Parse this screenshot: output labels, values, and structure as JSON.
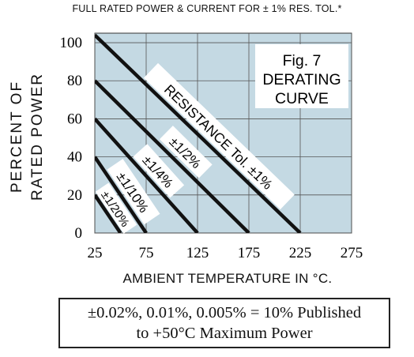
{
  "header": "FULL RATED POWER & CURRENT  FOR ± 1% RES. TOL.*",
  "ylabel": [
    "PERCENT OF",
    "RATED POWER"
  ],
  "xlabel": "AMBIENT TEMPERATURE IN °C.",
  "note": {
    "line1": "±0.02%, 0.01%, 0.005% = 10% Published",
    "line2": "to +50°C Maximum Power"
  },
  "colors": {
    "plot_bg": "#c4d9e3",
    "line": "#111111",
    "box": "#ffffff"
  },
  "chart_data": {
    "type": "line",
    "title": "Fig. 7 DERATING CURVE",
    "fig_box": [
      "Fig. 7",
      "DERATING",
      "CURVE"
    ],
    "xlabel": "AMBIENT TEMPERATURE IN °C.",
    "ylabel": "PERCENT OF RATED POWER",
    "xlim": [
      25,
      275
    ],
    "ylim": [
      0,
      105
    ],
    "x_ticks": [
      25,
      75,
      125,
      175,
      225,
      275
    ],
    "y_ticks": [
      0,
      20,
      40,
      60,
      80,
      100
    ],
    "grid": true,
    "series": [
      {
        "name": "RESISTANCE  Tol. ±1%",
        "x": [
          25,
          225
        ],
        "y": [
          104,
          0
        ]
      },
      {
        "name": "±1/2%",
        "x": [
          25,
          175
        ],
        "y": [
          80,
          0
        ]
      },
      {
        "name": "±1/4%",
        "x": [
          25,
          125
        ],
        "y": [
          60,
          0
        ]
      },
      {
        "name": "±1/10%",
        "x": [
          25,
          75
        ],
        "y": [
          40,
          0
        ]
      },
      {
        "name": "±1/20%",
        "x": [
          25,
          50
        ],
        "y": [
          20,
          0
        ]
      }
    ]
  }
}
